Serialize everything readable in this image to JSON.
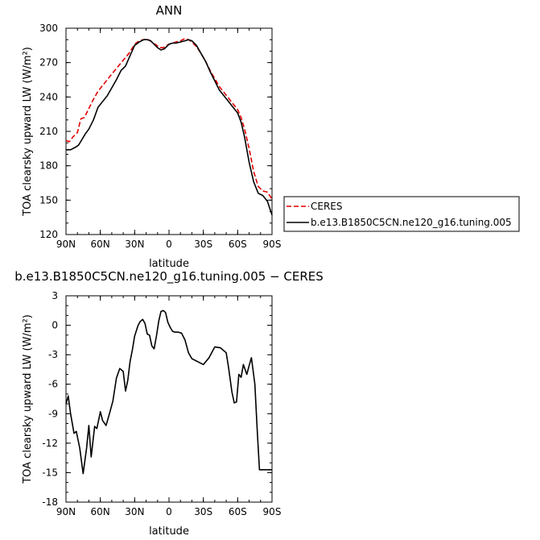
{
  "chart_data": [
    {
      "type": "line",
      "title": "ANN",
      "xlabel": "latitude",
      "ylabel": "TOA clearsky upward LW (W/m²)",
      "xlim": [
        -90,
        90
      ],
      "ylim": [
        120,
        300
      ],
      "x_ticks": [
        {
          "value": -90,
          "label": "90N"
        },
        {
          "value": -60,
          "label": "60N"
        },
        {
          "value": -30,
          "label": "30N"
        },
        {
          "value": 0,
          "label": "0"
        },
        {
          "value": 30,
          "label": "30S"
        },
        {
          "value": 60,
          "label": "60S"
        },
        {
          "value": 90,
          "label": "90S"
        }
      ],
      "y_ticks": [
        120,
        150,
        180,
        210,
        240,
        270,
        300
      ],
      "legend": "outside-right",
      "series": [
        {
          "name": "CERES",
          "color": "#e00000",
          "dash": "dashed",
          "x": [
            -90,
            -87,
            -84,
            -80,
            -77,
            -74,
            -70,
            -66,
            -62,
            -58,
            -54,
            -50,
            -45,
            -40,
            -35,
            -30,
            -26,
            -22,
            -18,
            -15,
            -12,
            -8,
            -5,
            -2,
            0,
            3,
            6,
            10,
            14,
            17,
            20,
            24,
            28,
            32,
            36,
            40,
            44,
            48,
            52,
            56,
            60,
            63,
            66,
            70,
            74,
            78,
            82,
            86,
            90
          ],
          "values": [
            202,
            201,
            205,
            209,
            221,
            222,
            230,
            238,
            245,
            250,
            255,
            260,
            266,
            272,
            278,
            286,
            289,
            290,
            290,
            288,
            286,
            283,
            283,
            285,
            286,
            287,
            288,
            289,
            291,
            290,
            288,
            284,
            278,
            271,
            263,
            256,
            249,
            244,
            239,
            234,
            229,
            222,
            212,
            195,
            175,
            162,
            158,
            157,
            151
          ]
        },
        {
          "name": "b.e13.B1850C5CN.ne120_g16.tuning.005",
          "color": "#000000",
          "dash": "solid",
          "x": [
            -90,
            -86,
            -82,
            -79,
            -76,
            -73,
            -70,
            -66,
            -62,
            -58,
            -54,
            -50,
            -46,
            -42,
            -38,
            -34,
            -30,
            -26,
            -22,
            -19,
            -16,
            -13,
            -10,
            -7,
            -4,
            0,
            3,
            6,
            10,
            14,
            17,
            20,
            24,
            28,
            32,
            36,
            40,
            44,
            48,
            52,
            56,
            60,
            63,
            66,
            70,
            74,
            78,
            82,
            86,
            90
          ],
          "values": [
            194,
            194,
            196,
            198,
            203,
            208,
            212,
            220,
            231,
            236,
            241,
            248,
            255,
            263,
            267,
            276,
            285,
            288,
            290,
            290,
            289,
            286,
            283,
            281,
            282,
            286,
            287,
            287,
            288,
            289,
            290,
            289,
            285,
            278,
            271,
            262,
            254,
            246,
            241,
            236,
            231,
            226,
            218,
            205,
            183,
            166,
            156,
            154,
            149,
            137
          ]
        }
      ]
    },
    {
      "type": "line",
      "title": "b.e13.B1850C5CN.ne120_g16.tuning.005 − CERES",
      "xlabel": "latitude",
      "ylabel": "TOA clearsky upward LW (W/m²)",
      "xlim": [
        -90,
        90
      ],
      "ylim": [
        -18,
        3
      ],
      "x_ticks": [
        {
          "value": -90,
          "label": "90N"
        },
        {
          "value": -60,
          "label": "60N"
        },
        {
          "value": -30,
          "label": "30N"
        },
        {
          "value": 0,
          "label": "0"
        },
        {
          "value": 30,
          "label": "30S"
        },
        {
          "value": 60,
          "label": "60S"
        },
        {
          "value": 90,
          "label": "90S"
        }
      ],
      "y_ticks": [
        -18,
        -15,
        -12,
        -9,
        -6,
        -3,
        0,
        3
      ],
      "series": [
        {
          "color": "#000000",
          "dash": "solid",
          "x": [
            -90,
            -88,
            -86,
            -83,
            -81,
            -78,
            -75,
            -72,
            -70,
            -68,
            -65,
            -63,
            -60,
            -58,
            -55,
            -52,
            -49,
            -46,
            -43,
            -40,
            -38,
            -36,
            -34,
            -32,
            -30,
            -27,
            -25,
            -23,
            -21,
            -19,
            -17,
            -15,
            -13,
            -11,
            -9,
            -7,
            -5,
            -3,
            -1,
            1,
            3,
            5,
            8,
            11,
            14,
            17,
            20,
            25,
            30,
            35,
            40,
            45,
            50,
            52,
            55,
            57,
            59,
            61,
            63,
            65,
            68,
            70,
            72,
            75,
            77,
            79,
            82,
            84,
            86,
            88,
            90
          ],
          "values": [
            -8,
            -7.2,
            -9,
            -11,
            -10.8,
            -12.5,
            -15.1,
            -12.5,
            -10.2,
            -13.4,
            -10.3,
            -10.5,
            -8.8,
            -9.7,
            -10.2,
            -9,
            -7.7,
            -5.4,
            -4.4,
            -4.7,
            -6.7,
            -5.6,
            -3.7,
            -2.5,
            -1.1,
            0,
            0.4,
            0.6,
            0.2,
            -0.9,
            -1,
            -2.1,
            -2.4,
            -1.1,
            0.4,
            1.4,
            1.5,
            1.3,
            0.3,
            -0.2,
            -0.6,
            -0.7,
            -0.7,
            -0.8,
            -1.5,
            -2.8,
            -3.4,
            -3.7,
            -4,
            -3.3,
            -2.2,
            -2.3,
            -2.8,
            -4.3,
            -6.8,
            -7.9,
            -7.8,
            -5,
            -5.3,
            -4,
            -5,
            -4.1,
            -3.3,
            -6,
            -10.5,
            -14.7,
            -14.7,
            -14.7,
            -14.7,
            -14.7,
            -14.7
          ]
        }
      ]
    }
  ]
}
